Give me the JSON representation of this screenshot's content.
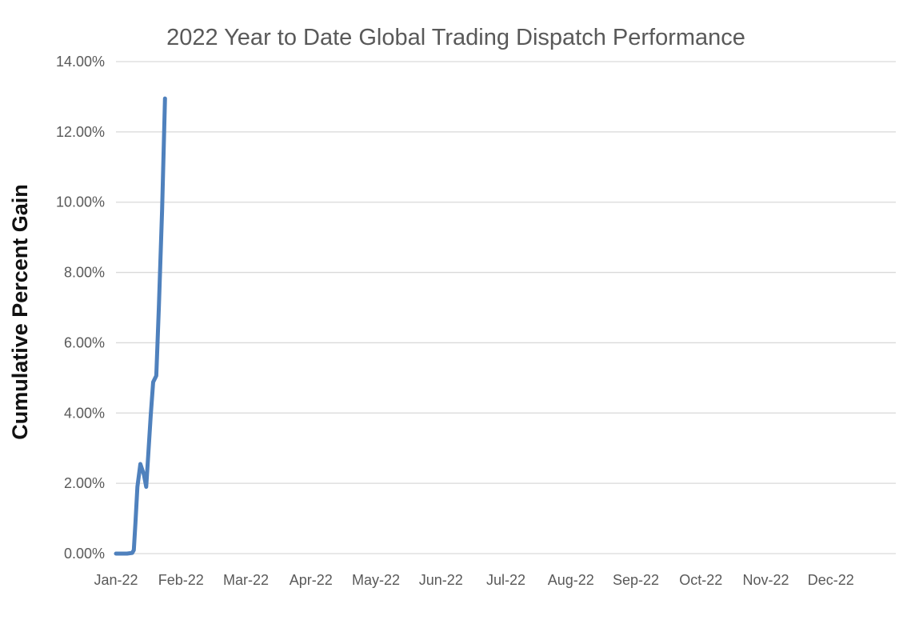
{
  "chart_data": {
    "type": "line",
    "title": "2022 Year to Date Global Trading Dispatch Performance",
    "xlabel": "",
    "ylabel": "Cumulative Percent Gain",
    "x_tick_labels": [
      "Jan-22",
      "Feb-22",
      "Mar-22",
      "Apr-22",
      "May-22",
      "Jun-22",
      "Jul-22",
      "Aug-22",
      "Sep-22",
      "Oct-22",
      "Nov-22",
      "Dec-22"
    ],
    "y_tick_values": [
      0,
      2,
      4,
      6,
      8,
      10,
      12,
      14
    ],
    "y_tick_labels": [
      "0.00%",
      "2.00%",
      "4.00%",
      "6.00%",
      "8.00%",
      "10.00%",
      "12.00%",
      "14.00%"
    ],
    "ylim": [
      0,
      14
    ],
    "xlim_months": [
      0,
      12
    ],
    "grid": "horizontal",
    "legend": "none",
    "colors": {
      "line": "#4F81BD",
      "grid": "#D9D9D9",
      "tick_text": "#595959",
      "title_text": "#595959",
      "axis_title_text": "#111111",
      "background": "#FFFFFF"
    },
    "series": [
      {
        "unit": "percent",
        "x_unit": "months_since_jan_1_2022",
        "points": [
          [
            0.0,
            0.0
          ],
          [
            0.085,
            0.0
          ],
          [
            0.17,
            0.0
          ],
          [
            0.25,
            0.02
          ],
          [
            0.275,
            0.1
          ],
          [
            0.3,
            0.9
          ],
          [
            0.33,
            1.9
          ],
          [
            0.375,
            2.55
          ],
          [
            0.43,
            2.25
          ],
          [
            0.465,
            1.9
          ],
          [
            0.5,
            2.9
          ],
          [
            0.535,
            3.95
          ],
          [
            0.572,
            4.88
          ],
          [
            0.62,
            5.06
          ],
          [
            0.66,
            7.0
          ],
          [
            0.71,
            9.8
          ],
          [
            0.755,
            12.95
          ]
        ]
      }
    ]
  }
}
